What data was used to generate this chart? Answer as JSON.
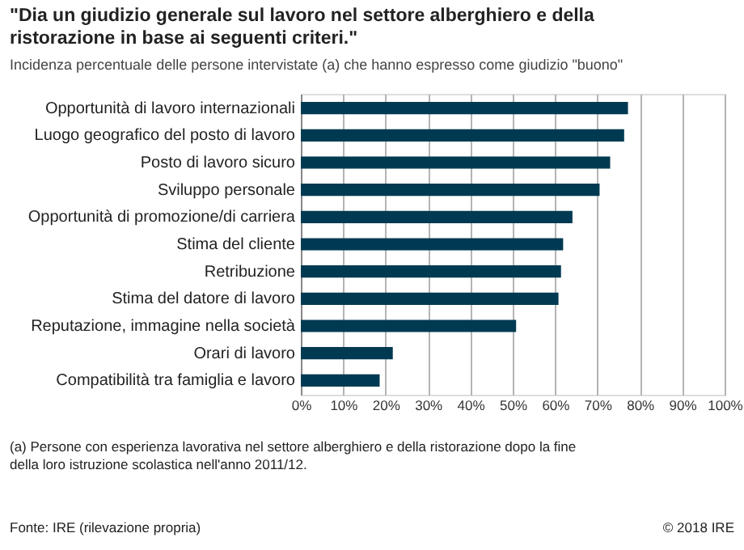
{
  "chart_data": {
    "type": "bar",
    "orientation": "horizontal",
    "title": "\"Dia un giudizio generale sul lavoro nel settore alberghiero e della ristorazione in base ai seguenti criteri.\"",
    "subtitle": "Incidenza percentuale delle persone intervistate  (a) che hanno espresso come giudizio \"buono\"",
    "categories": [
      "Opportunità di lavoro internazionali",
      "Luogo geografico del posto di lavoro",
      "Posto di lavoro sicuro",
      "Sviluppo personale",
      "Opportunità di promozione/di carriera",
      "Stima del cliente",
      "Retribuzione",
      "Stima del datore di lavoro",
      "Reputazione, immagine nella società",
      "Orari di lavoro",
      "Compatibilità tra famiglia e lavoro"
    ],
    "values": [
      77.2,
      76.3,
      73.0,
      70.5,
      64.1,
      61.9,
      61.4,
      60.8,
      50.8,
      21.7,
      18.6
    ],
    "color": "#003a52",
    "xlim": [
      0,
      100
    ],
    "xticks": [
      {
        "value": 0,
        "label": "0%"
      },
      {
        "value": 10,
        "label": "10%"
      },
      {
        "value": 20,
        "label": "20%"
      },
      {
        "value": 30,
        "label": "30%"
      },
      {
        "value": 40,
        "label": "40%"
      },
      {
        "value": 50,
        "label": "50%"
      },
      {
        "value": 60,
        "label": "60%"
      },
      {
        "value": 70,
        "label": "70%"
      },
      {
        "value": 80,
        "label": "80%"
      },
      {
        "value": 90,
        "label": "90%"
      },
      {
        "value": 100,
        "label": "100%"
      }
    ],
    "grid": "x",
    "annotations": [
      "(a) Persone con esperienza lavorativa nel settore alberghiero e della ristorazione dopo la fine della loro istruzione scolastica nell'anno 2011/12.",
      "Fonte: IRE (rilevazione propria)",
      "© 2018 IRE"
    ]
  }
}
